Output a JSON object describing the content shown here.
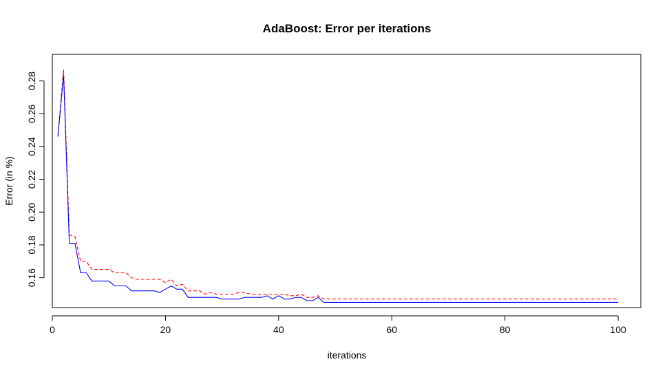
{
  "chart_data": {
    "type": "line",
    "title": "AdaBoost: Error per iterations",
    "xlabel": "iterations",
    "ylabel": "Error (in %)",
    "xlim": [
      0,
      104
    ],
    "ylim": [
      0.1418,
      0.2962
    ],
    "grid": false,
    "xticks": [
      0,
      20,
      40,
      60,
      80,
      100
    ],
    "xtick_labels": [
      "0",
      "20",
      "40",
      "60",
      "80",
      "100"
    ],
    "yticks": [
      0.16,
      0.18,
      0.2,
      0.22,
      0.24,
      0.26,
      0.28
    ],
    "ytick_labels": [
      "0.16",
      "0.18",
      "0.20",
      "0.22",
      "0.24",
      "0.26",
      "0.28"
    ],
    "series": [
      {
        "color": "#ff0000",
        "dash": "5,3",
        "x": [
          1,
          2,
          3,
          4,
          5,
          6,
          7,
          8,
          9,
          10,
          11,
          12,
          13,
          14,
          15,
          16,
          17,
          18,
          19,
          20,
          21,
          22,
          23,
          24,
          25,
          26,
          27,
          28,
          29,
          30,
          31,
          32,
          33,
          34,
          35,
          36,
          37,
          38,
          39,
          40,
          41,
          42,
          43,
          44,
          45,
          46,
          47,
          48,
          49,
          50,
          60,
          70,
          80,
          90,
          100
        ],
        "y": [
          0.247,
          0.287,
          0.186,
          0.185,
          0.17,
          0.17,
          0.165,
          0.165,
          0.165,
          0.165,
          0.163,
          0.163,
          0.163,
          0.16,
          0.159,
          0.159,
          0.159,
          0.159,
          0.159,
          0.157,
          0.159,
          0.155,
          0.156,
          0.152,
          0.152,
          0.152,
          0.15,
          0.151,
          0.15,
          0.15,
          0.15,
          0.15,
          0.151,
          0.151,
          0.15,
          0.15,
          0.15,
          0.15,
          0.15,
          0.15,
          0.15,
          0.149,
          0.149,
          0.15,
          0.148,
          0.148,
          0.149,
          0.147,
          0.147,
          0.147,
          0.147,
          0.147,
          0.147,
          0.147,
          0.147
        ]
      },
      {
        "color": "#0000ff",
        "dash": "",
        "x": [
          1,
          2,
          3,
          4,
          5,
          6,
          7,
          8,
          9,
          10,
          11,
          12,
          13,
          14,
          15,
          16,
          17,
          18,
          19,
          20,
          21,
          22,
          23,
          24,
          25,
          26,
          27,
          28,
          29,
          30,
          31,
          32,
          33,
          34,
          35,
          36,
          37,
          38,
          39,
          40,
          41,
          42,
          43,
          44,
          45,
          46,
          47,
          48,
          49,
          50,
          60,
          70,
          80,
          90,
          100
        ],
        "y": [
          0.246,
          0.284,
          0.181,
          0.181,
          0.163,
          0.163,
          0.158,
          0.158,
          0.158,
          0.158,
          0.155,
          0.155,
          0.155,
          0.152,
          0.152,
          0.152,
          0.152,
          0.152,
          0.151,
          0.153,
          0.155,
          0.153,
          0.153,
          0.148,
          0.148,
          0.148,
          0.148,
          0.148,
          0.148,
          0.147,
          0.147,
          0.147,
          0.147,
          0.148,
          0.148,
          0.148,
          0.148,
          0.149,
          0.147,
          0.149,
          0.147,
          0.147,
          0.148,
          0.148,
          0.146,
          0.146,
          0.148,
          0.145,
          0.145,
          0.145,
          0.145,
          0.145,
          0.145,
          0.145,
          0.145
        ]
      }
    ]
  }
}
